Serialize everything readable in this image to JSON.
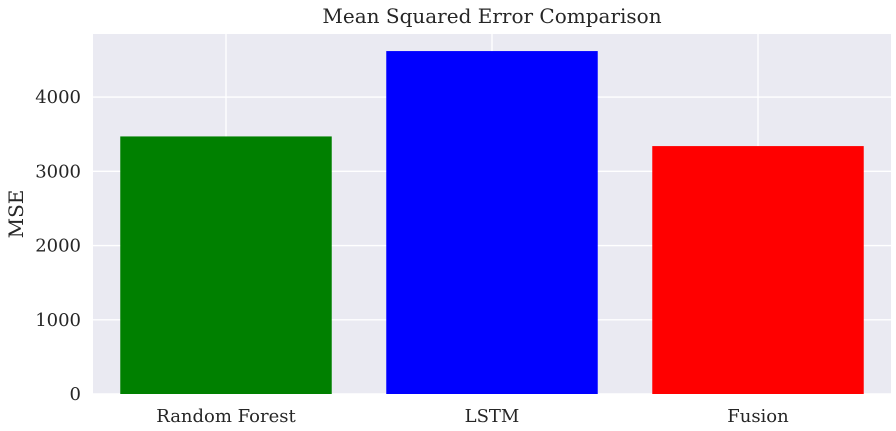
{
  "chart_data": {
    "type": "bar",
    "title": "Mean Squared Error Comparison",
    "xlabel": "",
    "ylabel": "MSE",
    "categories": [
      "Random Forest",
      "LSTM",
      "Fusion"
    ],
    "values": [
      3470,
      4620,
      3340
    ],
    "colors": [
      "#008000",
      "#0000ff",
      "#ff0000"
    ],
    "ylim": [
      0,
      4850
    ],
    "yticks": [
      0,
      1000,
      2000,
      3000,
      4000
    ],
    "ytick_labels": [
      "0",
      "1000",
      "2000",
      "3000",
      "4000"
    ],
    "grid": true,
    "background": "#eaeaf2",
    "legend": "none"
  }
}
